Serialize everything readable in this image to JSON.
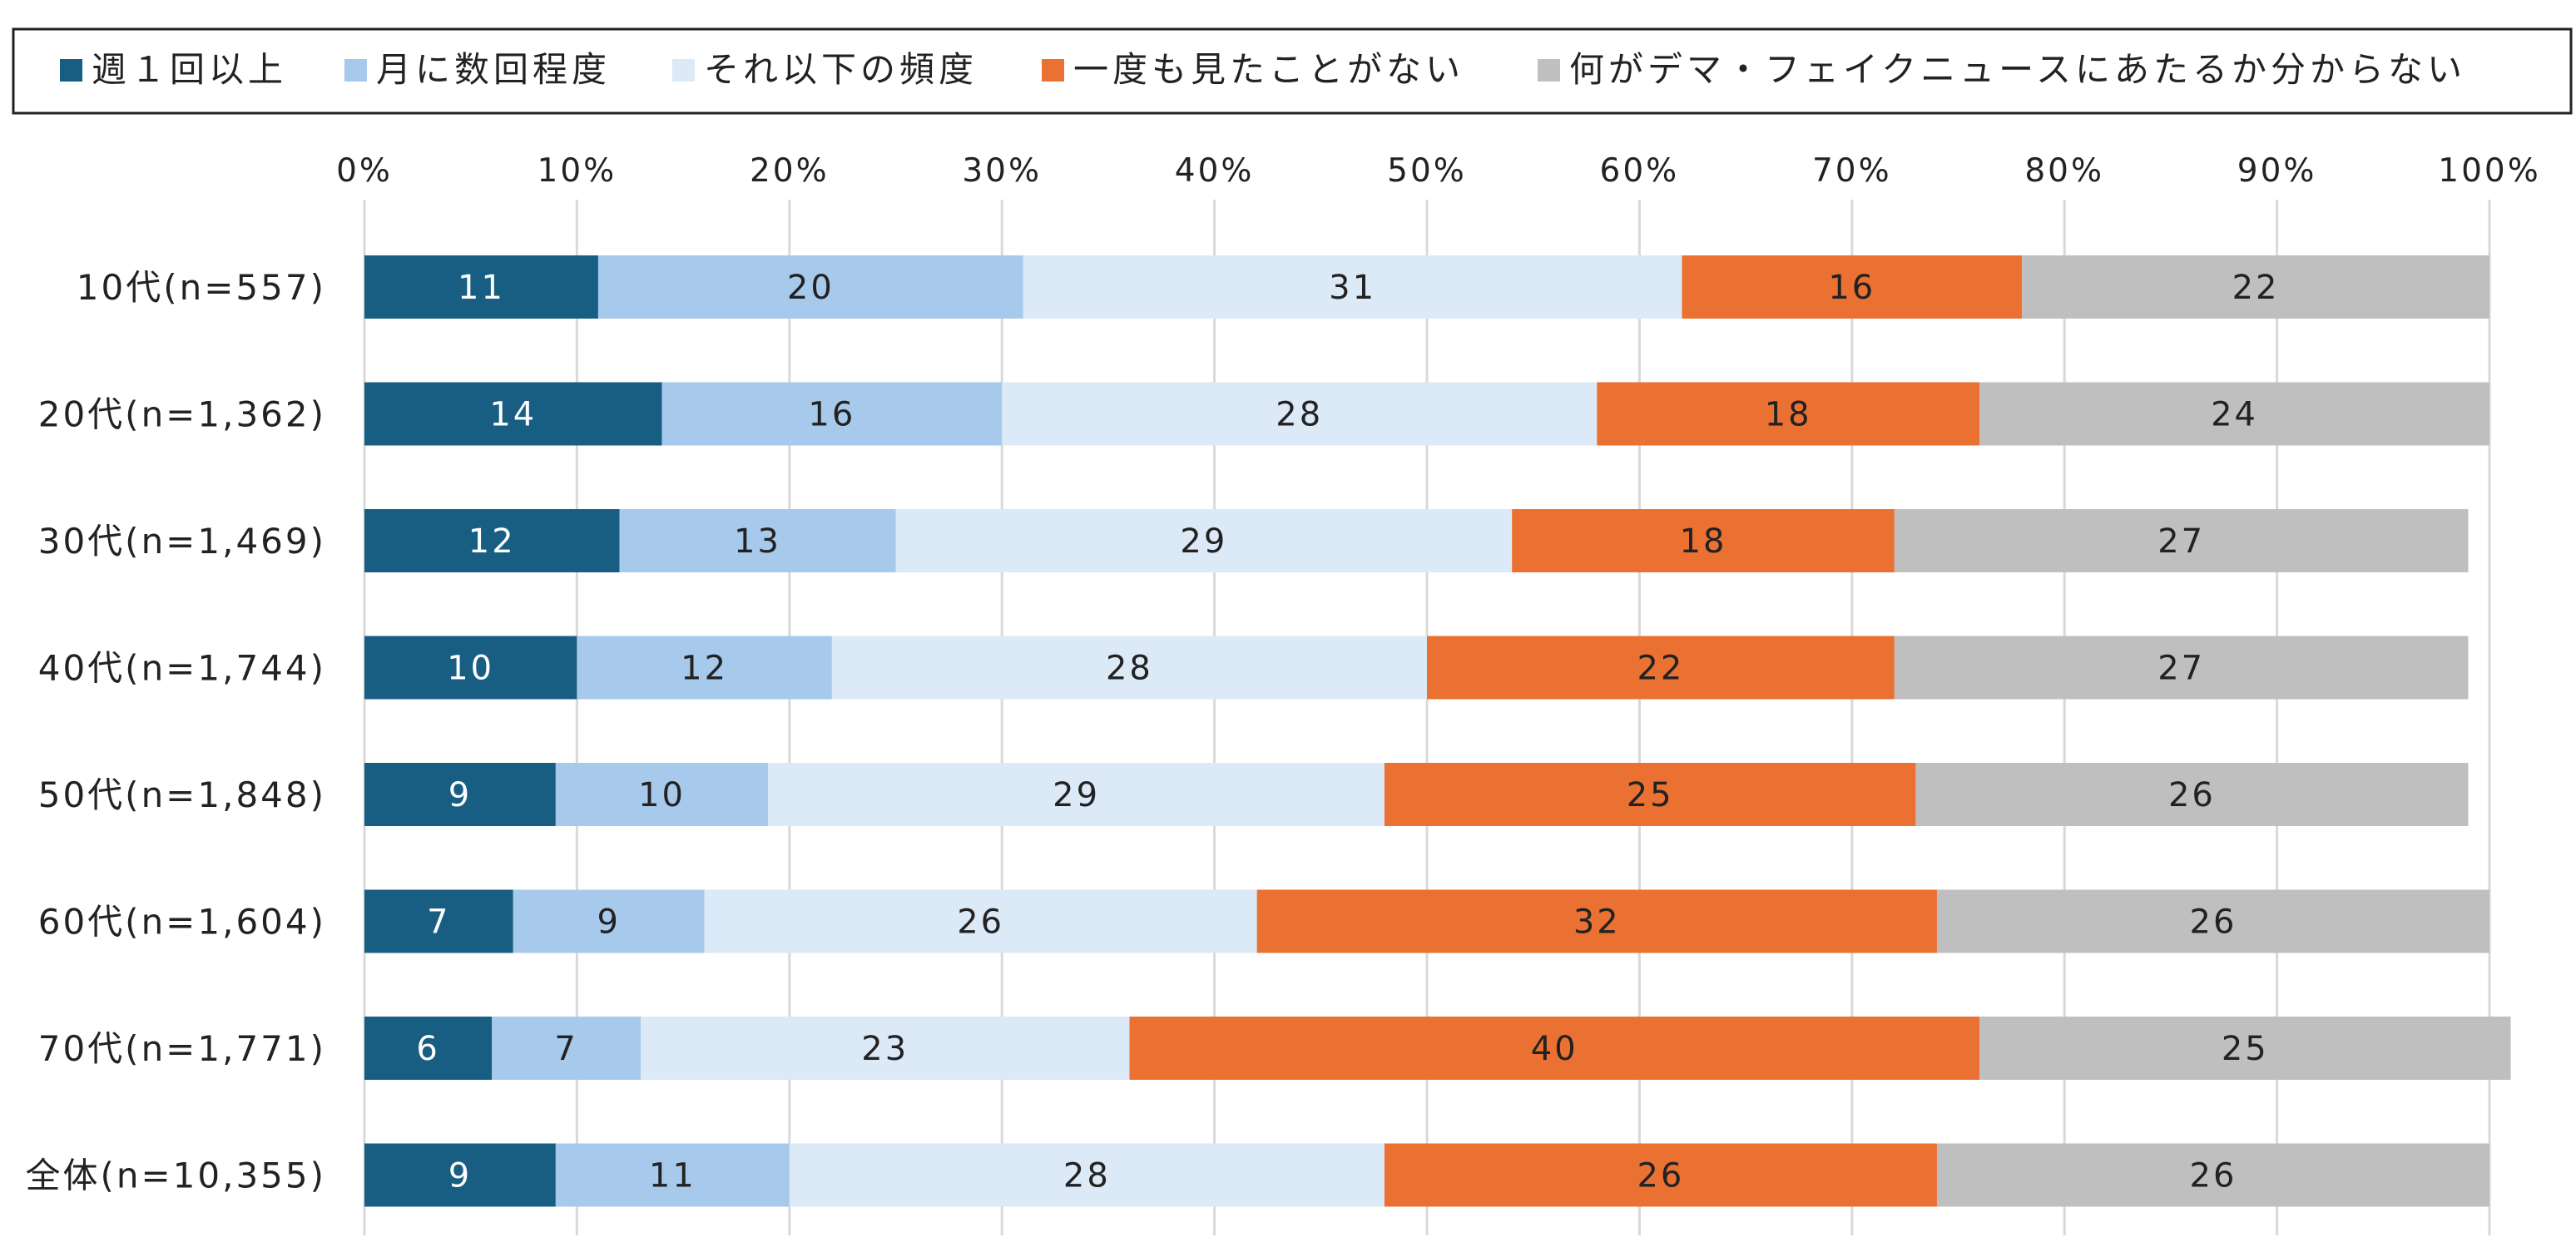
{
  "chart_data": {
    "type": "bar",
    "orientation": "horizontal",
    "stacked": true,
    "legend_position": "top",
    "grid": true,
    "xlim": [
      0,
      100
    ],
    "x_ticks": [
      "0%",
      "10%",
      "20%",
      "30%",
      "40%",
      "50%",
      "60%",
      "70%",
      "80%",
      "90%",
      "100%"
    ],
    "categories": [
      "10代(n=557)",
      "20代(n=1,362)",
      "30代(n=1,469)",
      "40代(n=1,744)",
      "50代(n=1,848)",
      "60代(n=1,604)",
      "70代(n=1,771)",
      "全体(n=10,355)"
    ],
    "series": [
      {
        "name": "週１回以上",
        "color": "#175e82",
        "label_color": "#ffffff",
        "values": [
          11,
          14,
          12,
          10,
          9,
          7,
          6,
          9
        ]
      },
      {
        "name": "月に数回程度",
        "color": "#a7c9eb",
        "label_color": "#222222",
        "values": [
          20,
          16,
          13,
          12,
          10,
          9,
          7,
          11
        ]
      },
      {
        "name": "それ以下の頻度",
        "color": "#dce9f6",
        "label_color": "#222222",
        "values": [
          31,
          28,
          29,
          28,
          29,
          26,
          23,
          28
        ]
      },
      {
        "name": "一度も見たことがない",
        "color": "#ea7132",
        "label_color": "#222222",
        "values": [
          16,
          18,
          18,
          22,
          25,
          32,
          40,
          26
        ]
      },
      {
        "name": "何がデマ・フェイクニュースにあたるか分からない",
        "color": "#bfbfbf",
        "label_color": "#222222",
        "values": [
          22,
          24,
          27,
          27,
          26,
          26,
          25,
          26
        ]
      }
    ]
  }
}
